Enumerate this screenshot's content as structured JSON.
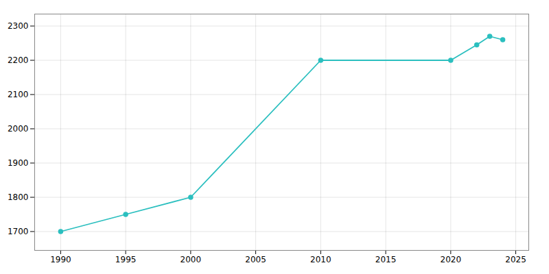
{
  "chart_data": {
    "type": "line",
    "x": [
      1990,
      1995,
      2000,
      2010,
      2020,
      2022,
      2023,
      2024
    ],
    "values": [
      1700,
      1750,
      1800,
      2200,
      2200,
      2245,
      2270,
      2260
    ],
    "color": "#2bbfbf",
    "marker": "circle",
    "xlim": [
      1988,
      2026
    ],
    "ylim": [
      1645,
      2335
    ],
    "xticks": [
      1990,
      1995,
      2000,
      2005,
      2010,
      2015,
      2020,
      2025
    ],
    "yticks": [
      1700,
      1800,
      1900,
      2000,
      2100,
      2200,
      2300
    ],
    "grid": true
  }
}
